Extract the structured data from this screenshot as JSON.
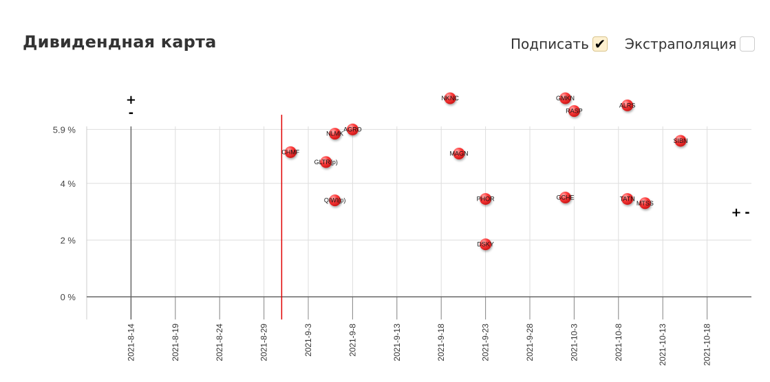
{
  "header": {
    "title": "Дивидендная карта",
    "sign_label": "Подписать",
    "sign_checked": true,
    "extrapolation_label": "Экстраполяция",
    "extrapolation_checked": false
  },
  "icons": {
    "check": "check-icon"
  },
  "colors": {
    "marker": "#ff3b3b",
    "today_line": "#e00000",
    "axis": "#666666",
    "grid": "#dddddd"
  },
  "chart_data": {
    "type": "scatter",
    "title": "",
    "xlabel": "",
    "ylabel": "",
    "x_tick_labels": [
      "2021-8-14",
      "2021-8-19",
      "2021-8-24",
      "2021-8-29",
      "2021-9-3",
      "2021-9-8",
      "2021-9-13",
      "2021-9-18",
      "2021-9-23",
      "2021-9-28",
      "2021-10-3",
      "2021-10-8",
      "2021-10-13",
      "2021-10-18"
    ],
    "y_tick_labels": [
      "0 %",
      "2 %",
      "4 %",
      "5.9 %"
    ],
    "y_ticks": [
      0,
      2,
      4,
      5.9
    ],
    "xlim": [
      "2021-8-09",
      "2021-10-23"
    ],
    "ylim": [
      -0.8,
      7.8
    ],
    "grid": true,
    "today": "2021-8-31",
    "zero_x": "2021-8-14",
    "zero_x_marker": {
      "plus": "+",
      "minus": "-"
    },
    "zero_y_marker": {
      "plus": "+",
      "minus": "-"
    },
    "points": [
      {
        "label": "CHMF",
        "x": "2021-9-1",
        "y": 5.1
      },
      {
        "label": "NLMK",
        "x": "2021-9-6",
        "y": 5.75
      },
      {
        "label": "AGRO",
        "x": "2021-9-8",
        "y": 5.9
      },
      {
        "label": "GLTR(p)",
        "x": "2021-9-5",
        "y": 4.75
      },
      {
        "label": "QIWI(p)",
        "x": "2021-9-6",
        "y": 3.4
      },
      {
        "label": "NKNC",
        "x": "2021-9-19",
        "y": 7.0
      },
      {
        "label": "MAGN",
        "x": "2021-9-20",
        "y": 5.05
      },
      {
        "label": "PHOR",
        "x": "2021-9-23",
        "y": 3.45
      },
      {
        "label": "DSKY",
        "x": "2021-9-23",
        "y": 1.85
      },
      {
        "label": "GMKN",
        "x": "2021-10-2",
        "y": 7.0
      },
      {
        "label": "RASP",
        "x": "2021-10-3",
        "y": 6.55
      },
      {
        "label": "GCHE",
        "x": "2021-10-2",
        "y": 3.5
      },
      {
        "label": "ALRS",
        "x": "2021-10-9",
        "y": 6.75
      },
      {
        "label": "TATN",
        "x": "2021-10-9",
        "y": 3.45
      },
      {
        "label": "MTSS",
        "x": "2021-10-11",
        "y": 3.3
      },
      {
        "label": "SIBN",
        "x": "2021-10-15",
        "y": 5.5
      }
    ]
  }
}
